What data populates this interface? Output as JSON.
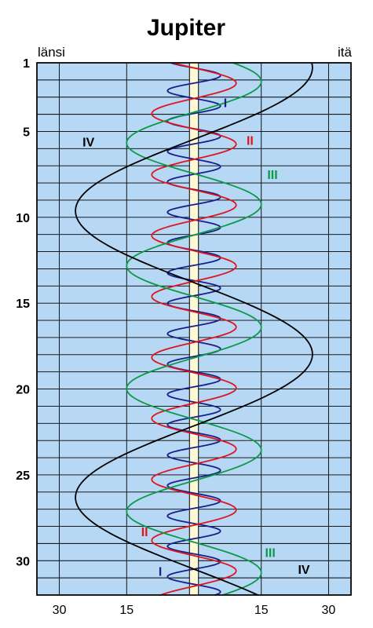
{
  "chart_data": {
    "type": "line",
    "title": "Jupiter",
    "direction_labels": {
      "west": "länsi",
      "east": "itä"
    },
    "y_axis": {
      "range": [
        1,
        32
      ],
      "tick_labels": [
        1,
        5,
        10,
        15,
        20,
        25,
        30
      ]
    },
    "x_axis": {
      "range": [
        -35,
        35
      ],
      "tick_values": [
        -30,
        -15,
        15,
        30
      ],
      "tick_labels": [
        "30",
        "15",
        "15",
        "30"
      ]
    },
    "grid": true,
    "planet_band_halfwidth": 1.0,
    "series": [
      {
        "name": "I",
        "color": "#1a1f8a",
        "amplitude": 5.9,
        "period_days": 1.769,
        "phase_day": 1.3,
        "labels": [
          {
            "text": "I",
            "day": 3.3,
            "x": 7.0
          },
          {
            "text": "I",
            "day": 30.6,
            "x": -7.5
          }
        ]
      },
      {
        "name": "II",
        "color": "#e0141e",
        "amplitude": 9.4,
        "period_days": 3.551,
        "phase_day": 1.3,
        "labels": [
          {
            "text": "II",
            "day": 5.5,
            "x": 12.5
          },
          {
            "text": "II",
            "day": 28.3,
            "x": -11.0
          }
        ]
      },
      {
        "name": "III",
        "color": "#0a9a48",
        "amplitude": 15.0,
        "period_days": 7.155,
        "phase_day": 0.3,
        "labels": [
          {
            "text": "III",
            "day": 7.5,
            "x": 17.5
          },
          {
            "text": "III",
            "day": 29.5,
            "x": 17.0
          }
        ]
      },
      {
        "name": "IV",
        "color": "#000000",
        "amplitude": 26.4,
        "period_days": 16.69,
        "phase_day": 13.8,
        "labels": [
          {
            "text": "IV",
            "day": 5.6,
            "x": -23.5
          },
          {
            "text": "IV",
            "day": 30.5,
            "x": 24.5
          }
        ]
      }
    ]
  }
}
